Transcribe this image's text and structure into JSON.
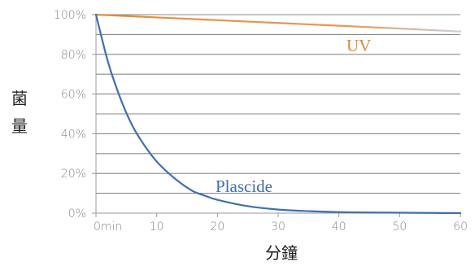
{
  "chart_data": {
    "type": "line",
    "xlabel": "分鐘",
    "ylabel": "菌量",
    "x_ticks": [
      "0min",
      "10",
      "20",
      "30",
      "40",
      "50",
      "60"
    ],
    "y_ticks": [
      "0%",
      "20%",
      "40%",
      "60%",
      "80%",
      "100%"
    ],
    "xlim": [
      0,
      60
    ],
    "ylim": [
      0,
      100
    ],
    "grid": "horizontal",
    "series": [
      {
        "name": "UV",
        "color": "#e08a3c",
        "x": [
          0,
          10,
          20,
          30,
          40,
          50,
          60
        ],
        "y": [
          100,
          98.6,
          97.2,
          95.8,
          94.4,
          93.0,
          91.5
        ]
      },
      {
        "name": "Plascide",
        "color": "#3f6fb0",
        "x": [
          0,
          2,
          4,
          6,
          8,
          10,
          12,
          14,
          16,
          18,
          20,
          25,
          30,
          35,
          40,
          45,
          50,
          55,
          60
        ],
        "y": [
          100,
          76,
          58,
          44,
          34,
          26,
          20,
          15,
          11,
          8.7,
          6.7,
          3.5,
          1.8,
          1.0,
          0.5,
          0.3,
          0.2,
          0.1,
          0
        ]
      }
    ]
  }
}
